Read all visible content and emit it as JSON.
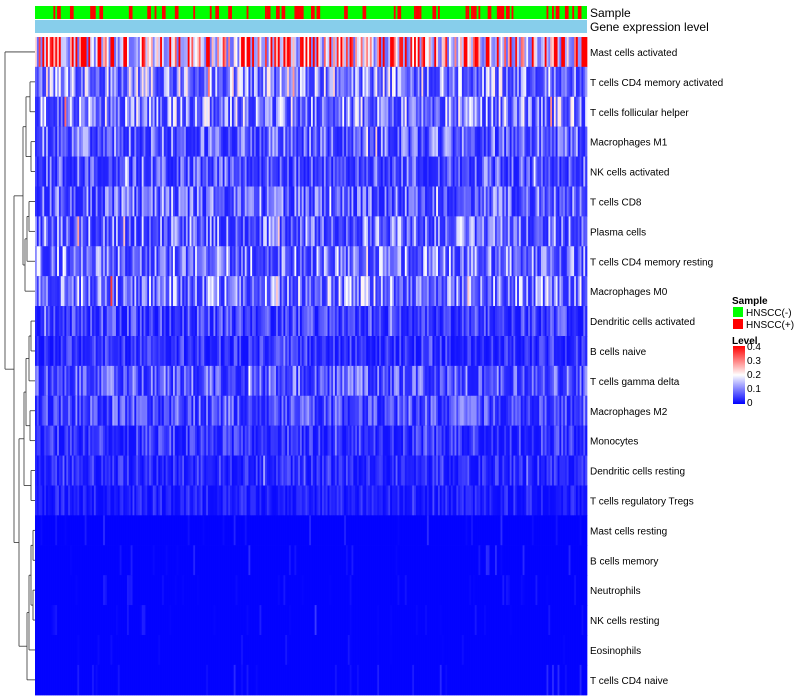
{
  "chart_data": {
    "type": "heatmap",
    "title": "",
    "annotation_tracks": [
      "Sample",
      "Gene expression level"
    ],
    "rows": [
      "Mast cells activated",
      "T cells CD4 memory activated",
      "T cells follicular helper",
      "Macrophages M1",
      "NK cells activated",
      "T cells CD8",
      "Plasma cells",
      "T cells CD4 memory resting",
      "Macrophages M0",
      "Dendritic cells activated",
      "B cells naive",
      "T cells gamma delta",
      "Macrophages M2",
      "Monocytes",
      "Dendritic cells resting",
      "T cells regulatory  Tregs",
      "Mast cells resting",
      "B cells memory",
      "Neutrophils",
      "NK cells resting",
      "Eosinophils",
      "T cells CD4 naive"
    ],
    "row_mean_levels": [
      0.33,
      0.13,
      0.12,
      0.09,
      0.08,
      0.09,
      0.1,
      0.11,
      0.12,
      0.06,
      0.05,
      0.08,
      0.07,
      0.05,
      0.04,
      0.03,
      0.02,
      0.02,
      0.015,
      0.015,
      0.01,
      0.02
    ],
    "n_samples": 300,
    "sample_legend": {
      "title": "Sample",
      "entries": [
        {
          "label": "HNSCC(-)",
          "color": "#00ff00"
        },
        {
          "label": "HNSCC(+)",
          "color": "#ff0000"
        }
      ]
    },
    "level_legend": {
      "title": "Level",
      "ticks": [
        "0.4",
        "0.3",
        "0.2",
        "0.1",
        "0"
      ],
      "range": [
        0,
        0.4
      ],
      "colors": {
        "low": "#0000ff",
        "mid": "#ffffff",
        "high": "#ff0000"
      }
    },
    "track_colors": {
      "expression": "#87ceeb"
    }
  }
}
